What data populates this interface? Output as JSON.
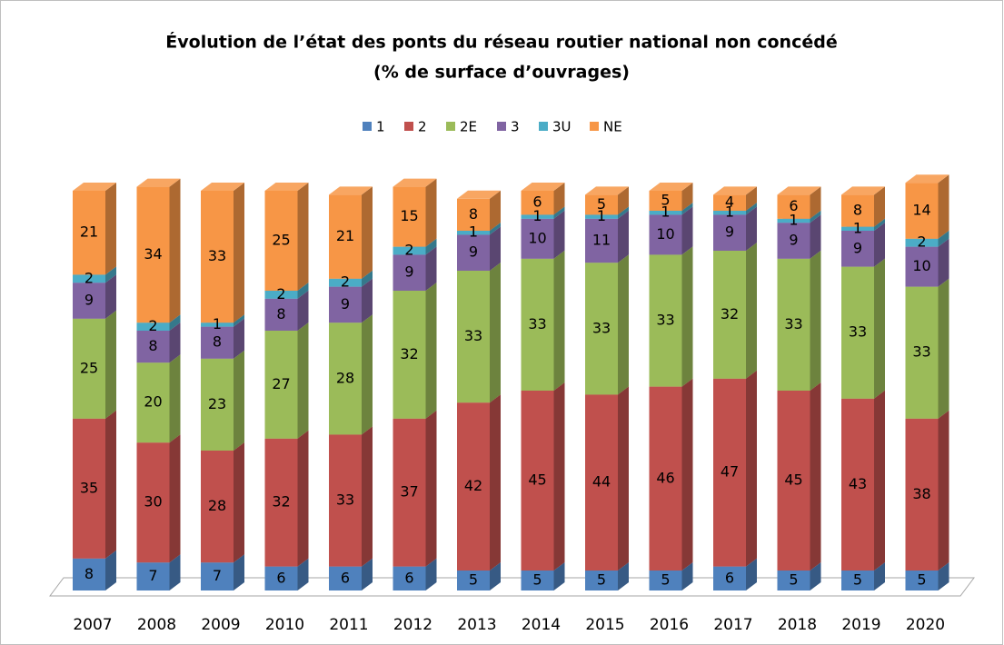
{
  "chart_data": {
    "type": "bar3d-stacked",
    "title": [
      "Évolution de l’état des ponts du réseau routier national non concédé",
      "(% de surface d’ouvrages)"
    ],
    "categories": [
      "2007",
      "2008",
      "2009",
      "2010",
      "2011",
      "2012",
      "2013",
      "2014",
      "2015",
      "2016",
      "2017",
      "2018",
      "2019",
      "2020"
    ],
    "series": [
      {
        "name": "1",
        "color": "#4f81bd",
        "values": [
          8,
          7,
          7,
          6,
          6,
          6,
          5,
          5,
          5,
          5,
          6,
          5,
          5,
          5
        ]
      },
      {
        "name": "2",
        "color": "#c0504d",
        "values": [
          35,
          30,
          28,
          32,
          33,
          37,
          42,
          45,
          44,
          46,
          47,
          45,
          43,
          38
        ]
      },
      {
        "name": "2E",
        "color": "#9bbb59",
        "values": [
          25,
          20,
          23,
          27,
          28,
          32,
          33,
          33,
          33,
          33,
          32,
          33,
          33,
          33
        ]
      },
      {
        "name": "3",
        "color": "#8064a2",
        "values": [
          9,
          8,
          8,
          8,
          9,
          9,
          9,
          10,
          11,
          10,
          9,
          9,
          9,
          10
        ]
      },
      {
        "name": "3U",
        "color": "#4bacc6",
        "values": [
          2,
          2,
          1,
          2,
          2,
          2,
          1,
          1,
          1,
          1,
          1,
          1,
          1,
          2
        ]
      },
      {
        "name": "NE",
        "color": "#f79646",
        "values": [
          21,
          34,
          33,
          25,
          21,
          15,
          8,
          6,
          5,
          5,
          4,
          6,
          8,
          14
        ]
      }
    ],
    "legend": "top",
    "data_labels": true
  }
}
